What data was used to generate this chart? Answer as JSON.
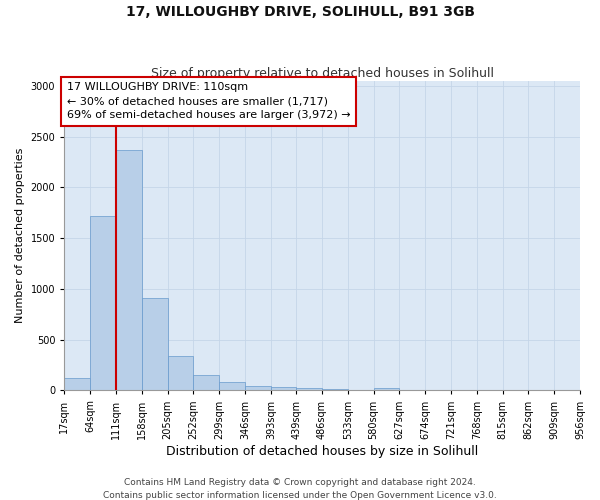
{
  "title": "17, WILLOUGHBY DRIVE, SOLIHULL, B91 3GB",
  "subtitle": "Size of property relative to detached houses in Solihull",
  "xlabel": "Distribution of detached houses by size in Solihull",
  "ylabel": "Number of detached properties",
  "footer_line1": "Contains HM Land Registry data © Crown copyright and database right 2024.",
  "footer_line2": "Contains public sector information licensed under the Open Government Licence v3.0.",
  "annotation_title": "17 WILLOUGHBY DRIVE: 110sqm",
  "annotation_line2": "← 30% of detached houses are smaller (1,717)",
  "annotation_line3": "69% of semi-detached houses are larger (3,972) →",
  "bin_edges": [
    17,
    64,
    111,
    158,
    205,
    252,
    299,
    346,
    393,
    439,
    486,
    533,
    580,
    627,
    674,
    721,
    768,
    815,
    862,
    909,
    956
  ],
  "bar_heights": [
    120,
    1720,
    2370,
    910,
    340,
    155,
    85,
    48,
    30,
    20,
    12,
    8,
    25,
    0,
    0,
    0,
    0,
    0,
    0,
    0
  ],
  "bar_color": "#b8cfe8",
  "bar_edge_color": "#6699cc",
  "vline_color": "#cc0000",
  "vline_x": 111,
  "annotation_box_color": "#cc0000",
  "annotation_box_fill": "#ffffff",
  "background_color": "#ffffff",
  "plot_bg_color": "#dce8f5",
  "grid_color": "#c5d5e8",
  "ylim": [
    0,
    3050
  ],
  "title_fontsize": 10,
  "subtitle_fontsize": 9,
  "xlabel_fontsize": 9,
  "ylabel_fontsize": 8,
  "tick_fontsize": 7,
  "annotation_fontsize": 8,
  "footer_fontsize": 6.5
}
